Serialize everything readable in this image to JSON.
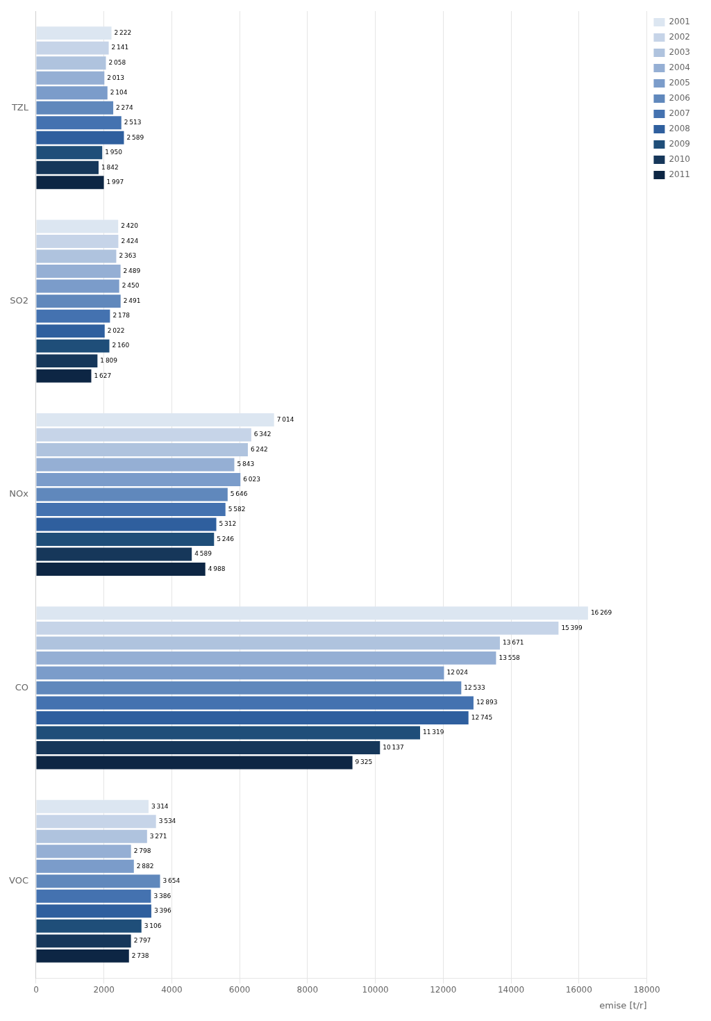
{
  "chart_data": {
    "type": "bar",
    "orientation": "horizontal",
    "xlabel": "emise [t/r]",
    "categories": [
      "TZL",
      "SO2",
      "NOx",
      "CO",
      "VOC"
    ],
    "series": [
      {
        "name": "2001",
        "color": "#dce6f1",
        "values": [
          2222,
          2420,
          7014,
          16269,
          3314
        ],
        "value_labels": [
          "2 222",
          "2 420",
          "7 014",
          "16 269",
          "3 314"
        ]
      },
      {
        "name": "2002",
        "color": "#c6d4e8",
        "values": [
          2141,
          2424,
          6342,
          15399,
          3534
        ],
        "value_labels": [
          "2 141",
          "2 424",
          "6 342",
          "15 399",
          "3 534"
        ]
      },
      {
        "name": "2003",
        "color": "#afc3de",
        "values": [
          2058,
          2363,
          6242,
          13671,
          3271
        ],
        "value_labels": [
          "2 058",
          "2 363",
          "6 242",
          "13 671",
          "3 271"
        ]
      },
      {
        "name": "2004",
        "color": "#95afd4",
        "values": [
          2013,
          2489,
          5843,
          13558,
          2798
        ],
        "value_labels": [
          "2 013",
          "2 489",
          "5 843",
          "13 558",
          "2 798"
        ]
      },
      {
        "name": "2005",
        "color": "#7b9cca",
        "values": [
          2104,
          2450,
          6023,
          12024,
          2882
        ],
        "value_labels": [
          "2 104",
          "2 450",
          "6 023",
          "12 024",
          "2 882"
        ]
      },
      {
        "name": "2006",
        "color": "#6088bc",
        "values": [
          2274,
          2491,
          5646,
          12533,
          3654
        ],
        "value_labels": [
          "2 274",
          "2 491",
          "5 646",
          "12 533",
          "3 654"
        ]
      },
      {
        "name": "2007",
        "color": "#4472b0",
        "values": [
          2513,
          2178,
          5582,
          12893,
          3386
        ],
        "value_labels": [
          "2 513",
          "2 178",
          "5 582",
          "12 893",
          "3 386"
        ]
      },
      {
        "name": "2008",
        "color": "#2f5f9e",
        "values": [
          2589,
          2022,
          5312,
          12745,
          3396
        ],
        "value_labels": [
          "2 589",
          "2 022",
          "5 312",
          "12 745",
          "3 396"
        ]
      },
      {
        "name": "2009",
        "color": "#1f4e79",
        "values": [
          1950,
          2160,
          5246,
          11319,
          3106
        ],
        "value_labels": [
          "1 950",
          "2 160",
          "5 246",
          "11 319",
          "3 106"
        ]
      },
      {
        "name": "2010",
        "color": "#16375a",
        "values": [
          1842,
          1809,
          4589,
          10137,
          2797
        ],
        "value_labels": [
          "1 842",
          "1 809",
          "4 589",
          "10 137",
          "2 797"
        ]
      },
      {
        "name": "2011",
        "color": "#0d2644",
        "values": [
          1997,
          1627,
          4988,
          9325,
          2738
        ],
        "value_labels": [
          "1 997",
          "1 627",
          "4 988",
          "9 325",
          "2 738"
        ]
      }
    ],
    "xlim": [
      0,
      18000
    ],
    "xticks": [
      0,
      2000,
      4000,
      6000,
      8000,
      10000,
      12000,
      14000,
      16000,
      18000
    ],
    "grid": true,
    "legend": "upper right",
    "data_labels": true
  }
}
